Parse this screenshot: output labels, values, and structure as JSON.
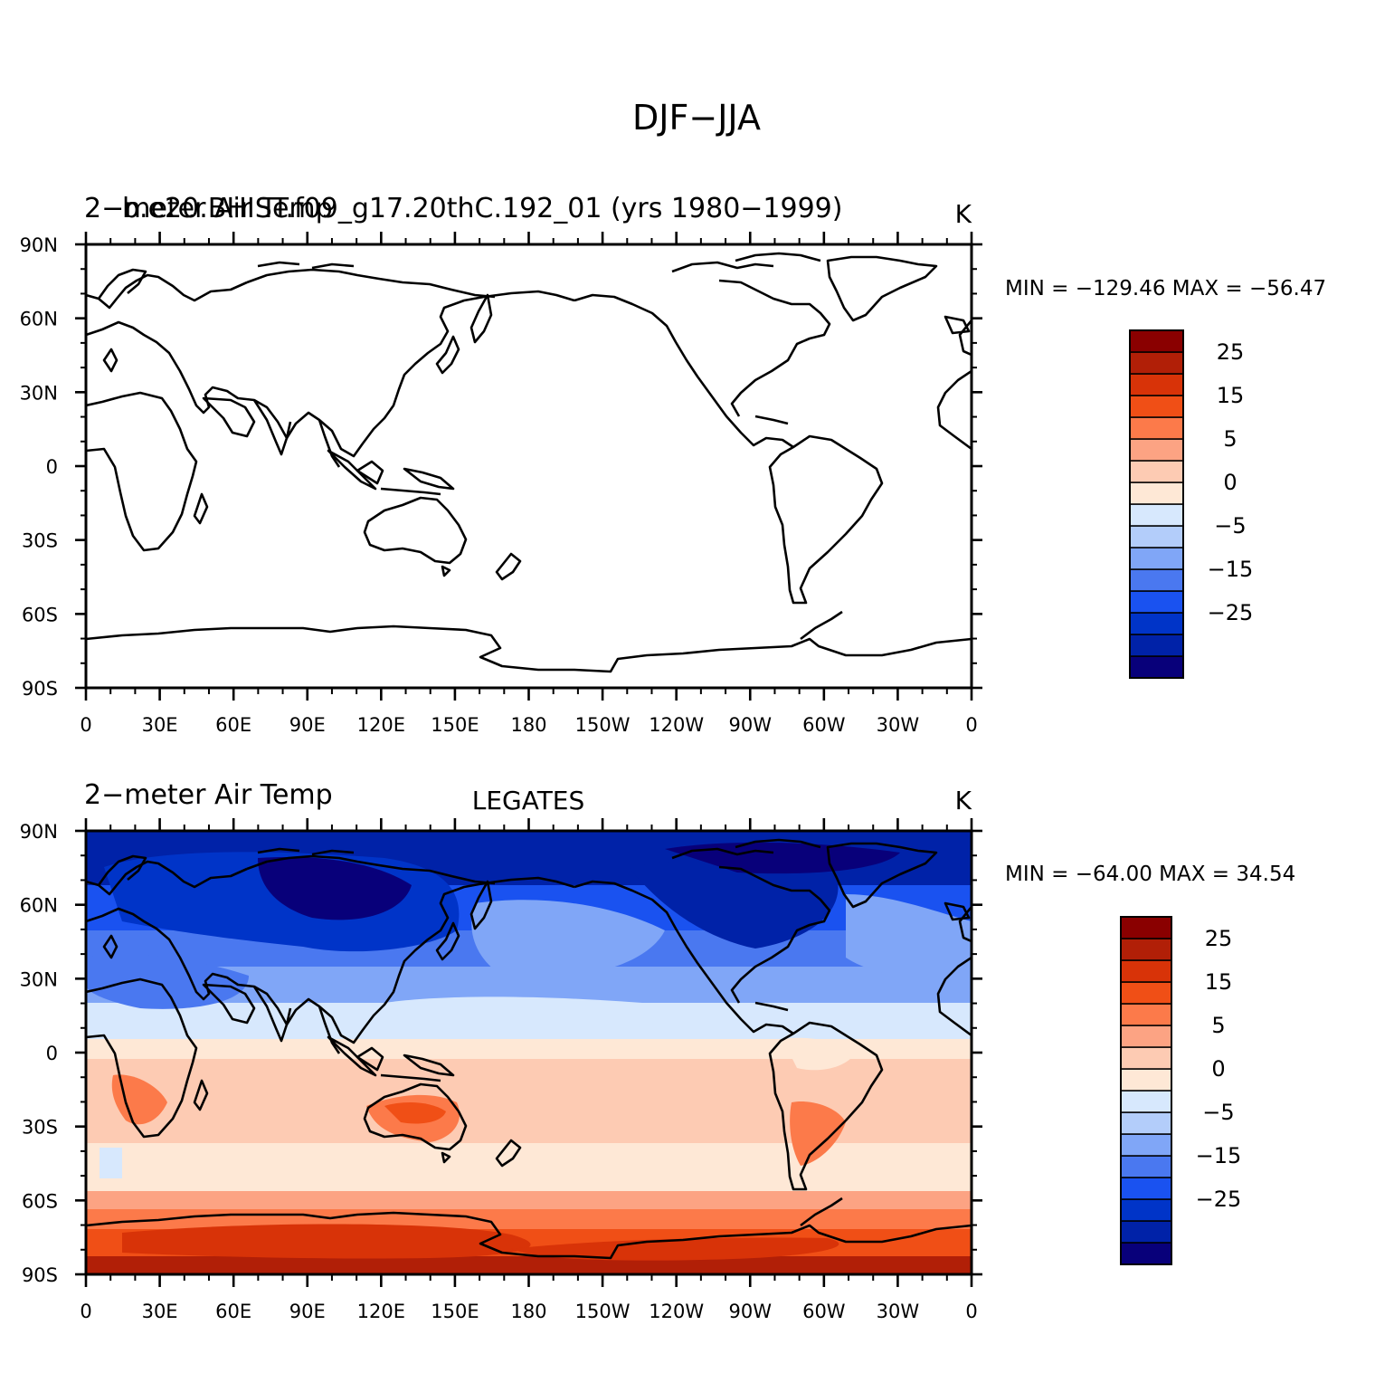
{
  "figure": {
    "main_title": "DJF−JJA"
  },
  "lat_labels": [
    "90N",
    "60N",
    "30N",
    "0",
    "30S",
    "60S",
    "90S"
  ],
  "lon_labels": [
    "0",
    "30E",
    "60E",
    "90E",
    "120E",
    "150E",
    "180",
    "150W",
    "120W",
    "90W",
    "60W",
    "30W",
    "0"
  ],
  "colors": {
    "levels": [
      "#08007a",
      "#0022a8",
      "#0034c8",
      "#1a52f0",
      "#4a78f0",
      "#80a6f7",
      "#b3cdfa",
      "#d7e8fd",
      "#fee8d6",
      "#fdcbb3",
      "#fca383",
      "#fc7a4a",
      "#f04f16",
      "#d83308",
      "#b11f07",
      "#8a0000"
    ]
  },
  "panels": [
    {
      "id": "top",
      "left_title_a": "2−meter Air Temp",
      "left_title_b": "b.e20.BHIST.f09_g17.20thC.192_01 (yrs 1980−1999)",
      "center_title": "",
      "units": "K",
      "min_max": "MIN = −129.46  MAX = −56.47",
      "colorbar_labels": [
        "25",
        "15",
        "5",
        "0",
        "−5",
        "−15",
        "−25"
      ],
      "field": "blank"
    },
    {
      "id": "bottom",
      "left_title_a": "2−meter Air Temp",
      "left_title_b": "",
      "center_title": "LEGATES",
      "units": "K",
      "min_max": "MIN = −64.00  MAX =   34.54",
      "colorbar_labels": [
        "25",
        "15",
        "5",
        "0",
        "−5",
        "−15",
        "−25"
      ],
      "field": "filled"
    }
  ]
}
